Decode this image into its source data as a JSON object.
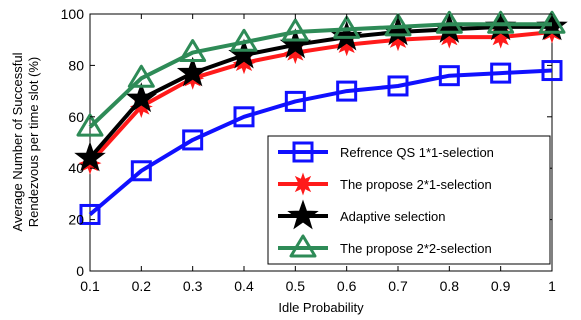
{
  "chart_data": {
    "type": "line",
    "xlabel": "Idle Probability",
    "ylabel_lines": [
      "Average Number of Successful",
      "Rendezvous per time slot (%)"
    ],
    "xlim": [
      0.1,
      1
    ],
    "ylim": [
      0,
      100
    ],
    "x": [
      0.1,
      0.2,
      0.3,
      0.4,
      0.5,
      0.6,
      0.7,
      0.8,
      0.9,
      1.0
    ],
    "x_tick_labels": [
      "0.1",
      "0.2",
      "0.3",
      "0.4",
      "0.5",
      "0.6",
      "0.7",
      "0.8",
      "0.9",
      "1"
    ],
    "y_ticks": [
      0,
      20,
      40,
      60,
      80,
      100
    ],
    "y_tick_labels": [
      "0",
      "20",
      "40",
      "60",
      "80",
      "100"
    ],
    "grid": false,
    "legend_position": "lower-right",
    "series": [
      {
        "name": "Refrence QS 1*1-selection",
        "color": "#1010ff",
        "marker": "square",
        "values": [
          22,
          39,
          51,
          60,
          66,
          70,
          72,
          76,
          77,
          78
        ]
      },
      {
        "name": "The propose 2*1-selection",
        "color": "#ff1a1a",
        "marker": "star",
        "values": [
          42,
          64,
          75,
          81,
          85,
          88,
          90,
          91,
          91,
          93
        ]
      },
      {
        "name": "Adaptive selection",
        "color": "#000000",
        "marker": "pentagram",
        "values": [
          44,
          67,
          77,
          84,
          88,
          91,
          93,
          94,
          95,
          95
        ]
      },
      {
        "name": "The propose 2*2-selection",
        "color": "#2e8b57",
        "marker": "triangle",
        "values": [
          56,
          75,
          85,
          89,
          93,
          94,
          95,
          96,
          96,
          96
        ]
      }
    ]
  }
}
